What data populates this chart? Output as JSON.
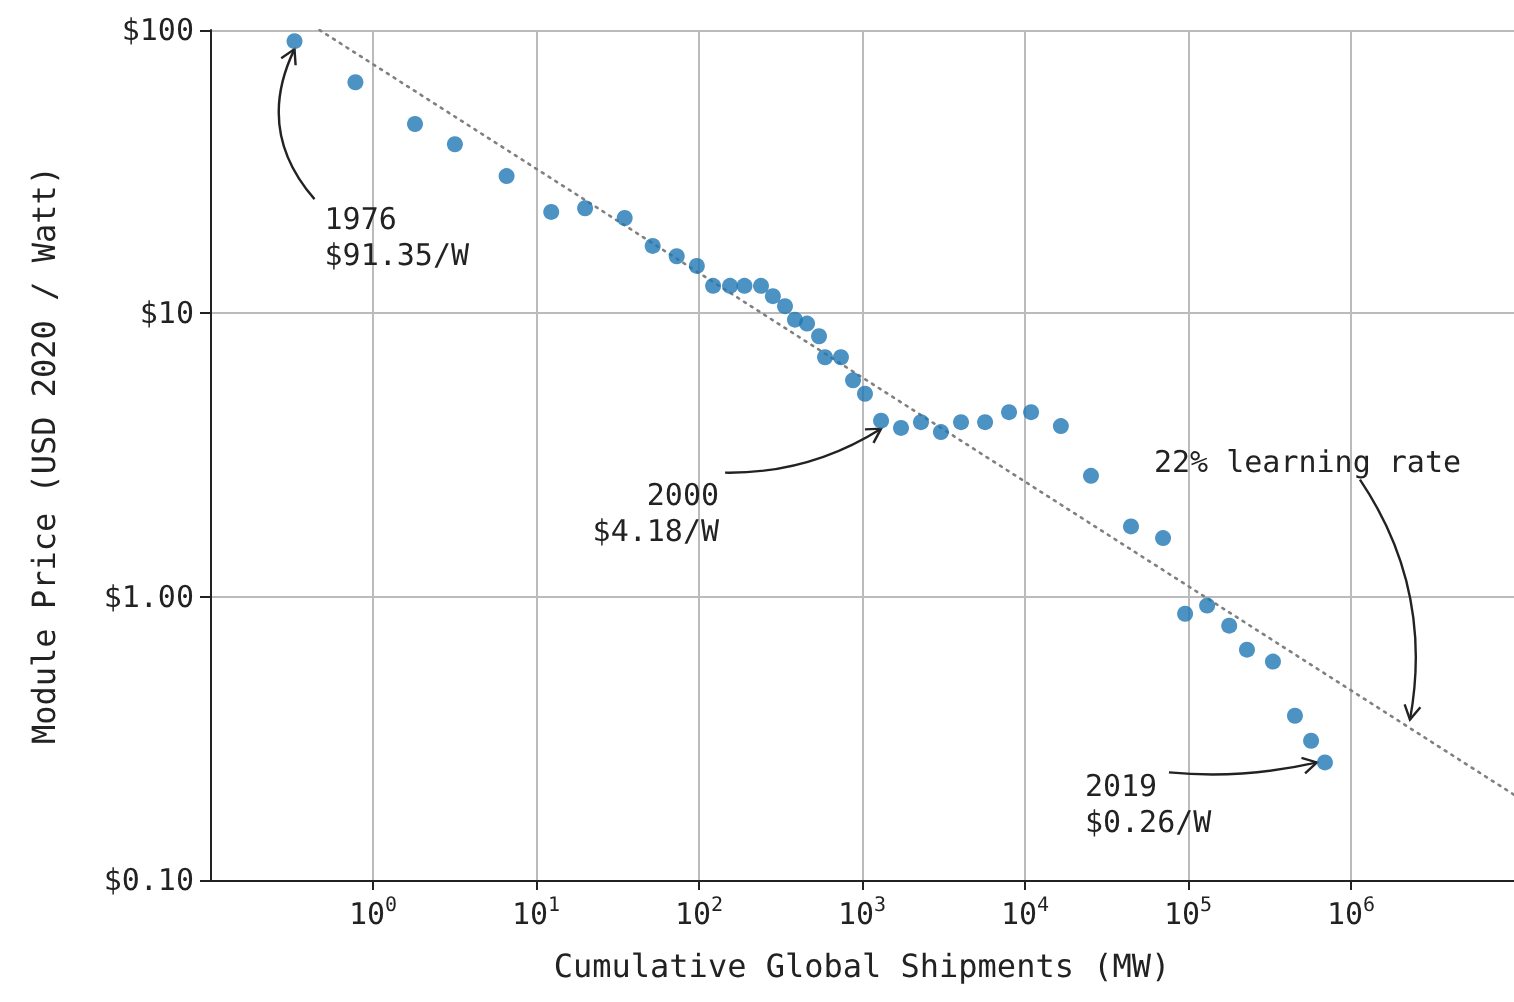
{
  "chart_data": {
    "type": "scatter",
    "xlabel": "Cumulative Global Shipments (MW)",
    "ylabel": "Module Price (USD 2020 / Watt)",
    "log": "xy",
    "grid": true,
    "marker": "circle",
    "xlim": [
      0.1,
      10000000
    ],
    "ylim": [
      0.1,
      100
    ],
    "xticks": [
      {
        "value": 1,
        "label": "10$^{0}$"
      },
      {
        "value": 10,
        "label": "10$^{1}$"
      },
      {
        "value": 100,
        "label": "10$^{2}$"
      },
      {
        "value": 1000,
        "label": "10$^{3}$"
      },
      {
        "value": 10000,
        "label": "10$^{4}$"
      },
      {
        "value": 100000,
        "label": "10$^{5}$"
      },
      {
        "value": 1000000,
        "label": "10$^{6}$"
      }
    ],
    "yticks": [
      {
        "value": 0.1,
        "label": "$0.10"
      },
      {
        "value": 1,
        "label": "$1.00"
      },
      {
        "value": 10,
        "label": "$10"
      },
      {
        "value": 100,
        "label": "$100"
      }
    ],
    "series": [
      {
        "color": "#1f77b4",
        "x": [
          0.33,
          0.78,
          1.81,
          3.18,
          6.6,
          12.4,
          20,
          35,
          52,
          73,
          97,
          122,
          155,
          190,
          240,
          284,
          337,
          388,
          460,
          545,
          593,
          743,
          881,
          1043,
          1309,
          1735,
          2300,
          3050,
          4050,
          5690,
          7980,
          10900,
          16600,
          25400,
          44700,
          70300,
          96000,
          131000,
          179000,
          230000,
          332000,
          453000,
          569000,
          692000
        ],
        "values": [
          91.35,
          65.4,
          46.6,
          39.5,
          30.5,
          22.8,
          23.5,
          21.7,
          17.3,
          15.9,
          14.7,
          12.5,
          12.5,
          12.5,
          12.5,
          11.5,
          10.6,
          9.5,
          9.2,
          8.3,
          7.0,
          7.0,
          5.8,
          5.2,
          4.18,
          3.94,
          4.13,
          3.81,
          4.13,
          4.13,
          4.48,
          4.48,
          4.0,
          2.67,
          1.77,
          1.61,
          0.87,
          0.93,
          0.79,
          0.65,
          0.59,
          0.38,
          0.31,
          0.26
        ]
      },
      {
        "type": "line",
        "color": "#808080",
        "line_style": "dotted",
        "marker": "none",
        "x": [
          0.47,
          10000000
        ],
        "values": [
          100,
          0.2
        ]
      }
    ],
    "annotations": [
      {
        "text": "1976\n$91.35/W",
        "x": 0.33,
        "y": 91.35
      },
      {
        "text": "2000\n$4.18/W",
        "x": 1309,
        "y": 4.18
      },
      {
        "text": "2019\n$0.26/W",
        "x": 692000,
        "y": 0.26
      },
      {
        "text": "22% learning rate",
        "x": 2300000,
        "y": 0.345
      }
    ]
  }
}
